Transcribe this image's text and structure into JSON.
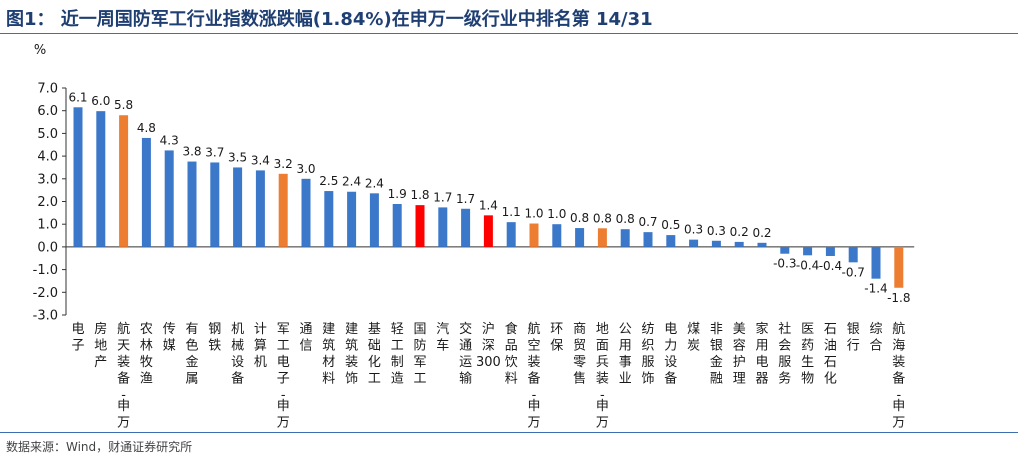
{
  "header": {
    "title": "图1：  近一周国防军工行业指数涨跌幅(1.84%)在申万一级行业中排名第 14/31"
  },
  "footer": {
    "source": "数据来源：Wind，财通证券研究所"
  },
  "colors": {
    "default": "#3b78c9",
    "orange": "#ed7d31",
    "red": "#ff0000",
    "title": "#1f3f73"
  },
  "chart_data": {
    "type": "bar",
    "ylabel": "%",
    "ylim": [
      -3.0,
      7.0
    ],
    "yticks": [
      "7.0",
      "6.0",
      "5.0",
      "4.0",
      "3.0",
      "2.0",
      "1.0",
      "0.0",
      "-1.0",
      "-2.0",
      "-3.0"
    ],
    "grid": false,
    "categories": [
      "电子",
      "房地产",
      "航天装备-申万三",
      "农林牧渔",
      "传媒",
      "有色金属",
      "钢铁",
      "机械设备",
      "计算机",
      "军工电子-申万三",
      "通信",
      "建筑材料",
      "建筑装饰",
      "基础化工",
      "轻工制造",
      "国防军工",
      "汽车",
      "交通运输",
      "沪深300",
      "食品饮料",
      "航空装备-申万三",
      "环保",
      "商贸零售",
      "地面兵装-申万三",
      "公用事业",
      "纺织服饰",
      "电力设备",
      "煤炭",
      "非银金融",
      "美容护理",
      "家用电器",
      "社会服务",
      "医药生物",
      "石油石化",
      "银行",
      "综合",
      "航海装备-申万三"
    ],
    "values": [
      6.15,
      5.98,
      5.8,
      4.8,
      4.25,
      3.76,
      3.72,
      3.5,
      3.37,
      3.22,
      3.0,
      2.46,
      2.43,
      2.36,
      1.89,
      1.84,
      1.74,
      1.68,
      1.39,
      1.09,
      1.03,
      1.0,
      0.83,
      0.82,
      0.78,
      0.65,
      0.52,
      0.32,
      0.27,
      0.22,
      0.18,
      -0.3,
      -0.37,
      -0.4,
      -0.68,
      -1.4,
      -1.8
    ],
    "labels": [
      "6.1",
      "6.0",
      "5.8",
      "4.8",
      "4.3",
      "3.8",
      "3.7",
      "3.5",
      "3.4",
      "3.2",
      "3.0",
      "2.5",
      "2.4",
      "2.4",
      "1.9",
      "1.8",
      "1.7",
      "1.7",
      "1.4",
      "1.1",
      "1.0",
      "1.0",
      "0.8",
      "0.8",
      "0.8",
      "0.7",
      "0.5",
      "0.3",
      "0.3",
      "0.2",
      "0.2",
      "-0.3",
      "-0.4",
      "-0.4",
      "-0.7",
      "-1.4",
      "-1.8"
    ],
    "highlight": {
      "orange": [
        "航天装备-申万三",
        "军工电子-申万三",
        "航空装备-申万三",
        "地面兵装-申万三",
        "航海装备-申万三"
      ],
      "red": [
        "国防军工",
        "沪深300"
      ]
    }
  }
}
